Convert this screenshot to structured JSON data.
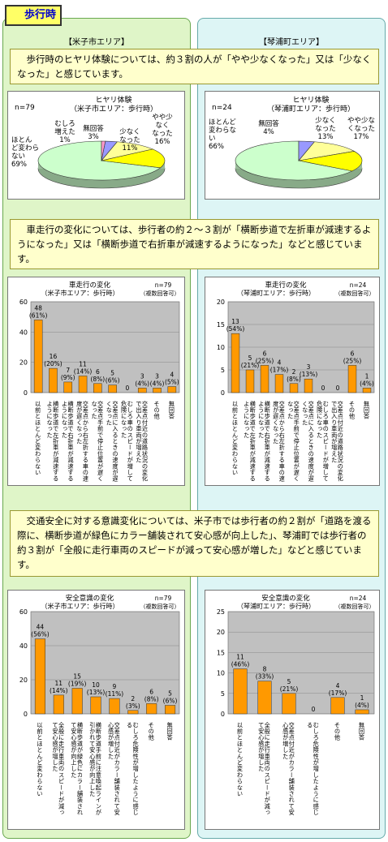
{
  "header": {
    "title": "歩行時"
  },
  "areas": {
    "left": "【米子市エリア】",
    "right": "【琴浦町エリア】"
  },
  "banners": {
    "hiyari": "歩行時のヒヤリ体験については、約３割の人が「やや少なくなった」又は「少なくなった」と感じています。",
    "car": "車走行の変化については、歩行者の約２～３割が「横断歩道で左折車が減速するようになった」又は「横断歩道で右折車が減速するようになった」などと感じています。",
    "safety": "交通安全に対する意識変化については、米子市では歩行者の約２割が「道路を渡る際に、横断歩道が緑色にカラー舗装されて安心感が向上した」、琴浦町では歩行者の約３割が「全般に走行車両のスピードが減って安心感が増した」などと感じています。"
  },
  "chart_data": [
    {
      "id": "pie_yonago",
      "type": "pie",
      "title": "ヒヤリ体験",
      "subtitle": "（米子市エリア：歩行時）",
      "n_label": "n=79",
      "colors": {
        "とんど変わらない": "#ccffcc",
        "むしろ増えた": "#ff99cc",
        "無回答": "#9999ff",
        "少なくなった": "#ffff99",
        "やや少なくなった": "#ffff00"
      },
      "slices": [
        {
          "label": "ほとんど変わらない",
          "pct": "69%",
          "value": 69
        },
        {
          "label": "むしろ増えた",
          "pct": "1%",
          "value": 1
        },
        {
          "label": "無回答",
          "pct": "3%",
          "value": 3
        },
        {
          "label": "少なくなった",
          "pct": "11%",
          "value": 11
        },
        {
          "label": "やや少なくなった",
          "pct": "16%",
          "value": 16
        }
      ]
    },
    {
      "id": "pie_kotoura",
      "type": "pie",
      "title": "ヒヤリ体験",
      "subtitle": "（琴浦町エリア：歩行時）",
      "n_label": "n=24",
      "slices": [
        {
          "label": "ほとんど変わらない",
          "pct": "66%",
          "value": 66
        },
        {
          "label": "無回答",
          "pct": "4%",
          "value": 4
        },
        {
          "label": "少なくなった",
          "pct": "13%",
          "value": 13
        },
        {
          "label": "やや少なくなった",
          "pct": "17%",
          "value": 17
        }
      ]
    },
    {
      "id": "bar_car_yonago",
      "type": "bar",
      "title": "車走行の変化",
      "subtitle": "（米子市エリア：歩行時）",
      "n_label": "n=79",
      "note": "（複数回答可）",
      "ylim": [
        0,
        60
      ],
      "yticks": [
        0,
        20,
        40,
        60
      ],
      "categories": [
        "以前とほとんど変わらない",
        "横断歩道で左折車が減速するようになった",
        "横断歩道で右折車が減速するようになった",
        "交差点から右左折する車の速度が遅くなった",
        "交差点手前で停止位置が遅くなった",
        "交差点に入るときの速度が遅くなった",
        "むしろ車のスピードが増して危険になった",
        "交差点付近の道路状況の変化で出入り車両が増えた",
        "その他",
        "無回答"
      ],
      "values": [
        48,
        16,
        7,
        11,
        6,
        5,
        0,
        3,
        3,
        4
      ],
      "labels": [
        "48",
        "16",
        "7",
        "11",
        "6",
        "5",
        "0",
        "3",
        "3",
        "4"
      ],
      "pcts": [
        "(61%)",
        "(20%)",
        "(9%)",
        "(14%)",
        "(8%)",
        "(6%)",
        "",
        "(4%)",
        "(4%)",
        "(5%)"
      ]
    },
    {
      "id": "bar_car_kotoura",
      "type": "bar",
      "title": "車走行の変化",
      "subtitle": "（琴浦町エリア：歩行時）",
      "n_label": "n=24",
      "note": "（複数回答可）",
      "ylim": [
        0,
        20
      ],
      "yticks": [
        0,
        5,
        10,
        15,
        20
      ],
      "categories": [
        "以前とほとんど変わらない",
        "横断歩道で左折車が減速するようになった",
        "横断歩道で右折車が減速するようになった",
        "交差点から右左折する車の速度が遅くなった",
        "交差点手前で停止位置が遅くなった",
        "交差点に入るときの速度が遅くなった",
        "むしろ車のスピードが増して危険になった",
        "交差点付近の道路状況の変化で出入り車両が増えた",
        "その他",
        "無回答"
      ],
      "values": [
        13,
        5,
        6,
        4,
        2,
        3,
        0,
        0,
        6,
        1
      ],
      "labels": [
        "13",
        "5",
        "6",
        "4",
        "2",
        "3",
        "0",
        "0",
        "6",
        "1"
      ],
      "pcts": [
        "(54%)",
        "(21%)",
        "(25%)",
        "(17%)",
        "(8%)",
        "(13%)",
        "",
        "",
        "(25%)",
        "(4%)"
      ]
    },
    {
      "id": "bar_safety_yonago",
      "type": "bar",
      "title": "安全意識の変化",
      "subtitle": "（米子市エリア：歩行時）",
      "n_label": "n=79",
      "note": "（複数回答可）",
      "ylim": [
        0,
        60
      ],
      "yticks": [
        0,
        20,
        40,
        60
      ],
      "categories": [
        "以前とほとんど変わらない",
        "全般に走行車両のスピードが減って安心感が増した",
        "横断歩道が緑色にカラー舗装されて安心感が向上した",
        "横断歩道手前に注意喚起ラインが引かれて安心感が向上した",
        "交差点付近がカラー舗装されて安心感が増した",
        "むしろ危険性が増したように感じる",
        "その他",
        "無回答"
      ],
      "values": [
        44,
        11,
        15,
        10,
        9,
        2,
        6,
        5
      ],
      "labels": [
        "44",
        "11",
        "15",
        "10",
        "9",
        "2",
        "6",
        "5"
      ],
      "pcts": [
        "(56%)",
        "(14%)",
        "(19%)",
        "(13%)",
        "(11%)",
        "(3%)",
        "(8%)",
        "(6%)"
      ]
    },
    {
      "id": "bar_safety_kotoura",
      "type": "bar",
      "title": "安全意識の変化",
      "subtitle": "（琴浦町エリア：歩行時）",
      "n_label": "n=24",
      "note": "（複数回答可）",
      "ylim": [
        0,
        25
      ],
      "yticks": [
        0,
        5,
        10,
        15,
        20,
        25
      ],
      "categories": [
        "以前とほとんど変わらない",
        "全般に走行車両のスピードが減って安心感が増した",
        "交差点付近がカラー舗装されて安心感が増した",
        "むしろ危険性が増したように感じる",
        "その他",
        "無回答"
      ],
      "values": [
        11,
        8,
        5,
        0,
        4,
        1
      ],
      "labels": [
        "11",
        "8",
        "5",
        "0",
        "4",
        "1"
      ],
      "pcts": [
        "(46%)",
        "(33%)",
        "(21%)",
        "",
        "(17%)",
        "(4%)"
      ]
    }
  ],
  "colors": {
    "bar": "#ff9900",
    "plot_bg": "#c0c0c0",
    "pie_main": "#ccffcc",
    "pie_pink": "#ff99cc",
    "pie_blue": "#9999ff",
    "pie_yellow": "#ffff99",
    "pie_gold": "#ffff00"
  }
}
